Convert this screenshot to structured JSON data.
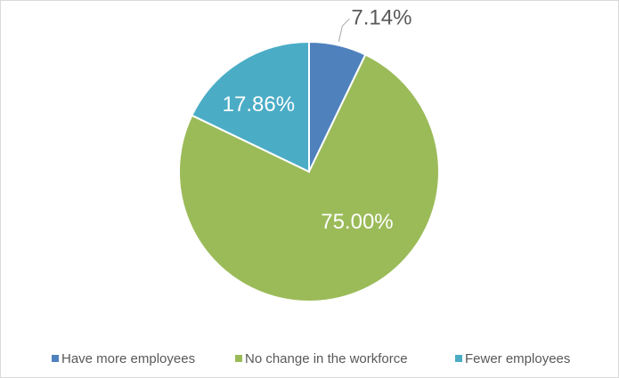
{
  "chart_data": {
    "type": "pie",
    "categories": [
      "Have more employees",
      "No change in the workforce",
      "Fewer employees"
    ],
    "values": [
      7.14,
      75,
      17.86
    ],
    "value_labels": [
      "7.14%",
      "75.00%",
      "17.86%"
    ],
    "colors": [
      "#4f81bd",
      "#9bbb59",
      "#4bacc6"
    ]
  }
}
